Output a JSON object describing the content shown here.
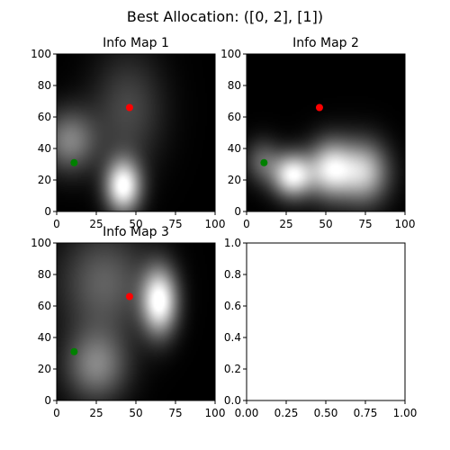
{
  "figure": {
    "suptitle": "Best Allocation: ([0, 2], [1])"
  },
  "chart_data": [
    {
      "type": "heatmap",
      "title": "Info Map 1",
      "xlim": [
        0,
        100
      ],
      "ylim": [
        0,
        100
      ],
      "xticks": [
        "0",
        "25",
        "50",
        "75",
        "100"
      ],
      "yticks": [
        "0",
        "20",
        "40",
        "60",
        "80",
        "100"
      ],
      "colormap": "gray",
      "blobs": [
        {
          "x": 42,
          "y": 16,
          "sx": 8,
          "sy": 12,
          "intensity": 1.0
        },
        {
          "x": 8,
          "y": 45,
          "sx": 12,
          "sy": 14,
          "intensity": 0.5
        },
        {
          "x": 45,
          "y": 65,
          "sx": 16,
          "sy": 26,
          "intensity": 0.28
        }
      ],
      "points": [
        {
          "x": 11,
          "y": 31,
          "color": "#008000"
        },
        {
          "x": 46,
          "y": 66,
          "color": "#ff0000"
        }
      ]
    },
    {
      "type": "heatmap",
      "title": "Info Map 2",
      "xlim": [
        0,
        100
      ],
      "ylim": [
        0,
        100
      ],
      "xticks": [
        "0",
        "25",
        "50",
        "75",
        "100"
      ],
      "yticks": [
        "0",
        "20",
        "40",
        "60",
        "80",
        "100"
      ],
      "colormap": "gray",
      "blobs": [
        {
          "x": 29,
          "y": 23,
          "sx": 9,
          "sy": 10,
          "intensity": 0.95
        },
        {
          "x": 53,
          "y": 27,
          "sx": 10,
          "sy": 13,
          "intensity": 0.85
        },
        {
          "x": 74,
          "y": 25,
          "sx": 11,
          "sy": 14,
          "intensity": 0.75
        },
        {
          "x": 10,
          "y": 32,
          "sx": 8,
          "sy": 10,
          "intensity": 0.35
        }
      ],
      "points": [
        {
          "x": 11,
          "y": 31,
          "color": "#008000"
        },
        {
          "x": 46,
          "y": 66,
          "color": "#ff0000"
        }
      ]
    },
    {
      "type": "heatmap",
      "title": "Info Map 3",
      "xlim": [
        0,
        100
      ],
      "ylim": [
        0,
        100
      ],
      "xticks": [
        "0",
        "25",
        "50",
        "75",
        "100"
      ],
      "yticks": [
        "0",
        "20",
        "40",
        "60",
        "80",
        "100"
      ],
      "colormap": "gray",
      "blobs": [
        {
          "x": 65,
          "y": 63,
          "sx": 8,
          "sy": 15,
          "intensity": 1.0
        },
        {
          "x": 25,
          "y": 22,
          "sx": 14,
          "sy": 16,
          "intensity": 0.5
        },
        {
          "x": 30,
          "y": 75,
          "sx": 20,
          "sy": 24,
          "intensity": 0.38
        }
      ],
      "points": [
        {
          "x": 11,
          "y": 31,
          "color": "#008000"
        },
        {
          "x": 46,
          "y": 66,
          "color": "#ff0000"
        }
      ]
    },
    {
      "type": "scatter",
      "title": "",
      "xlim": [
        0,
        1
      ],
      "ylim": [
        0,
        1
      ],
      "xticks": [
        "0.00",
        "0.25",
        "0.50",
        "0.75",
        "1.00"
      ],
      "yticks": [
        "0.0",
        "0.2",
        "0.4",
        "0.6",
        "0.8",
        "1.0"
      ],
      "empty": true
    }
  ]
}
